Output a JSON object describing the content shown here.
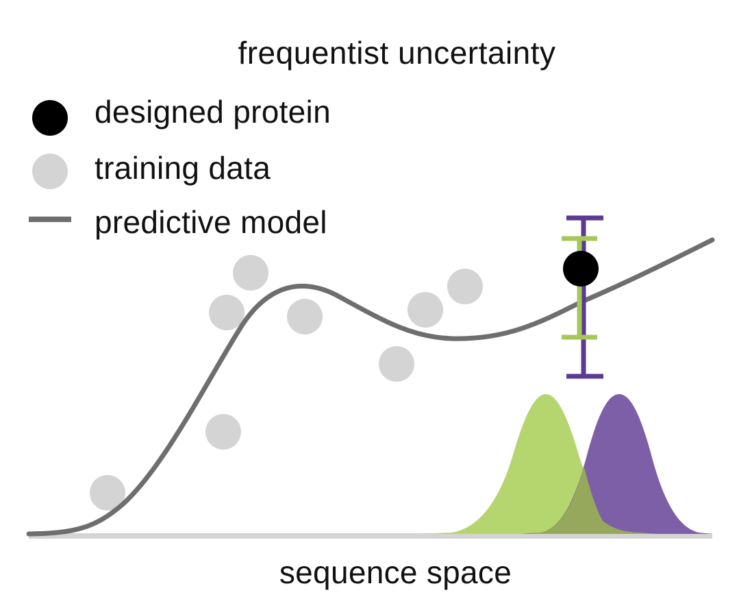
{
  "title": "frequentist uncertainty",
  "legend": {
    "designed": "designed protein",
    "training": "training data",
    "model": "predictive model"
  },
  "xlabel": "sequence space",
  "colors": {
    "designed": "#000000",
    "training": "#d4d4d4",
    "model": "#6e6e6e",
    "green": "#b5d56f",
    "purple": "#7d5fa8",
    "overlap": "#95a85c",
    "purple_bar": "#5b3a93",
    "axis": "#d4d4d4"
  },
  "icons": [
    "black-dot-icon",
    "gray-dot-icon",
    "gray-line-icon"
  ]
}
